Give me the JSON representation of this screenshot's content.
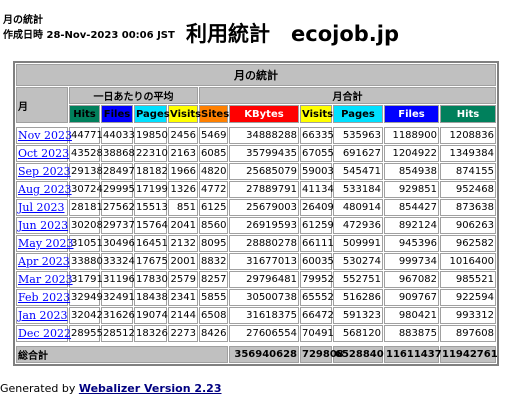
{
  "header": {
    "subtitle": "月の統計",
    "generated": "作成日時 28-Nov-2023 00:06 JST",
    "title": "利用統計　ecojob.jp"
  },
  "table": {
    "title": "月の統計",
    "month_header": "月",
    "daily_header": "一日あたりの平均",
    "monthly_header": "月合計",
    "columns": [
      "Hits",
      "Files",
      "Pages",
      "Visits",
      "Sites",
      "KBytes",
      "Visits",
      "Pages",
      "Files",
      "Hits"
    ],
    "rows": [
      [
        "Nov 2023",
        44771,
        44033,
        19850,
        2456,
        5469,
        34888288,
        66335,
        535963,
        1188900,
        1208836
      ],
      [
        "Oct 2023",
        43528,
        38868,
        22310,
        2163,
        6085,
        35799435,
        67055,
        691627,
        1204922,
        1349384
      ],
      [
        "Sep 2023",
        29138,
        28497,
        18182,
        1966,
        4820,
        25685079,
        59003,
        545471,
        854938,
        874155
      ],
      [
        "Aug 2023",
        30724,
        29995,
        17199,
        1326,
        4772,
        27889791,
        41134,
        533184,
        929851,
        952468
      ],
      [
        "Jul 2023",
        28181,
        27562,
        15513,
        851,
        6125,
        25679003,
        26409,
        480914,
        854427,
        873638
      ],
      [
        "Jun 2023",
        30208,
        29737,
        15764,
        2041,
        8560,
        26919593,
        61259,
        472936,
        892124,
        906263
      ],
      [
        "May 2023",
        31051,
        30496,
        16451,
        2132,
        8095,
        28880278,
        66111,
        509991,
        945396,
        962582
      ],
      [
        "Apr 2023",
        33880,
        33324,
        17675,
        2001,
        8832,
        31677013,
        60035,
        530274,
        999734,
        1016400
      ],
      [
        "Mar 2023",
        31791,
        31196,
        17830,
        2579,
        8257,
        29796481,
        79952,
        552751,
        967082,
        985521
      ],
      [
        "Feb 2023",
        32949,
        32491,
        18438,
        2341,
        5855,
        30500738,
        65552,
        516286,
        909767,
        922594
      ],
      [
        "Jan 2023",
        32042,
        31626,
        19074,
        2144,
        6508,
        31618375,
        66472,
        591323,
        980421,
        993312
      ],
      [
        "Dec 2022",
        28955,
        28512,
        18326,
        2273,
        8426,
        27606554,
        70491,
        568120,
        883875,
        897608
      ]
    ],
    "total_label": "総合計",
    "totals": [
      356940628,
      729808,
      6528840,
      11611437,
      11942761
    ]
  },
  "footer": {
    "text": "Generated by",
    "link": "Webalizer Version 2.23"
  }
}
